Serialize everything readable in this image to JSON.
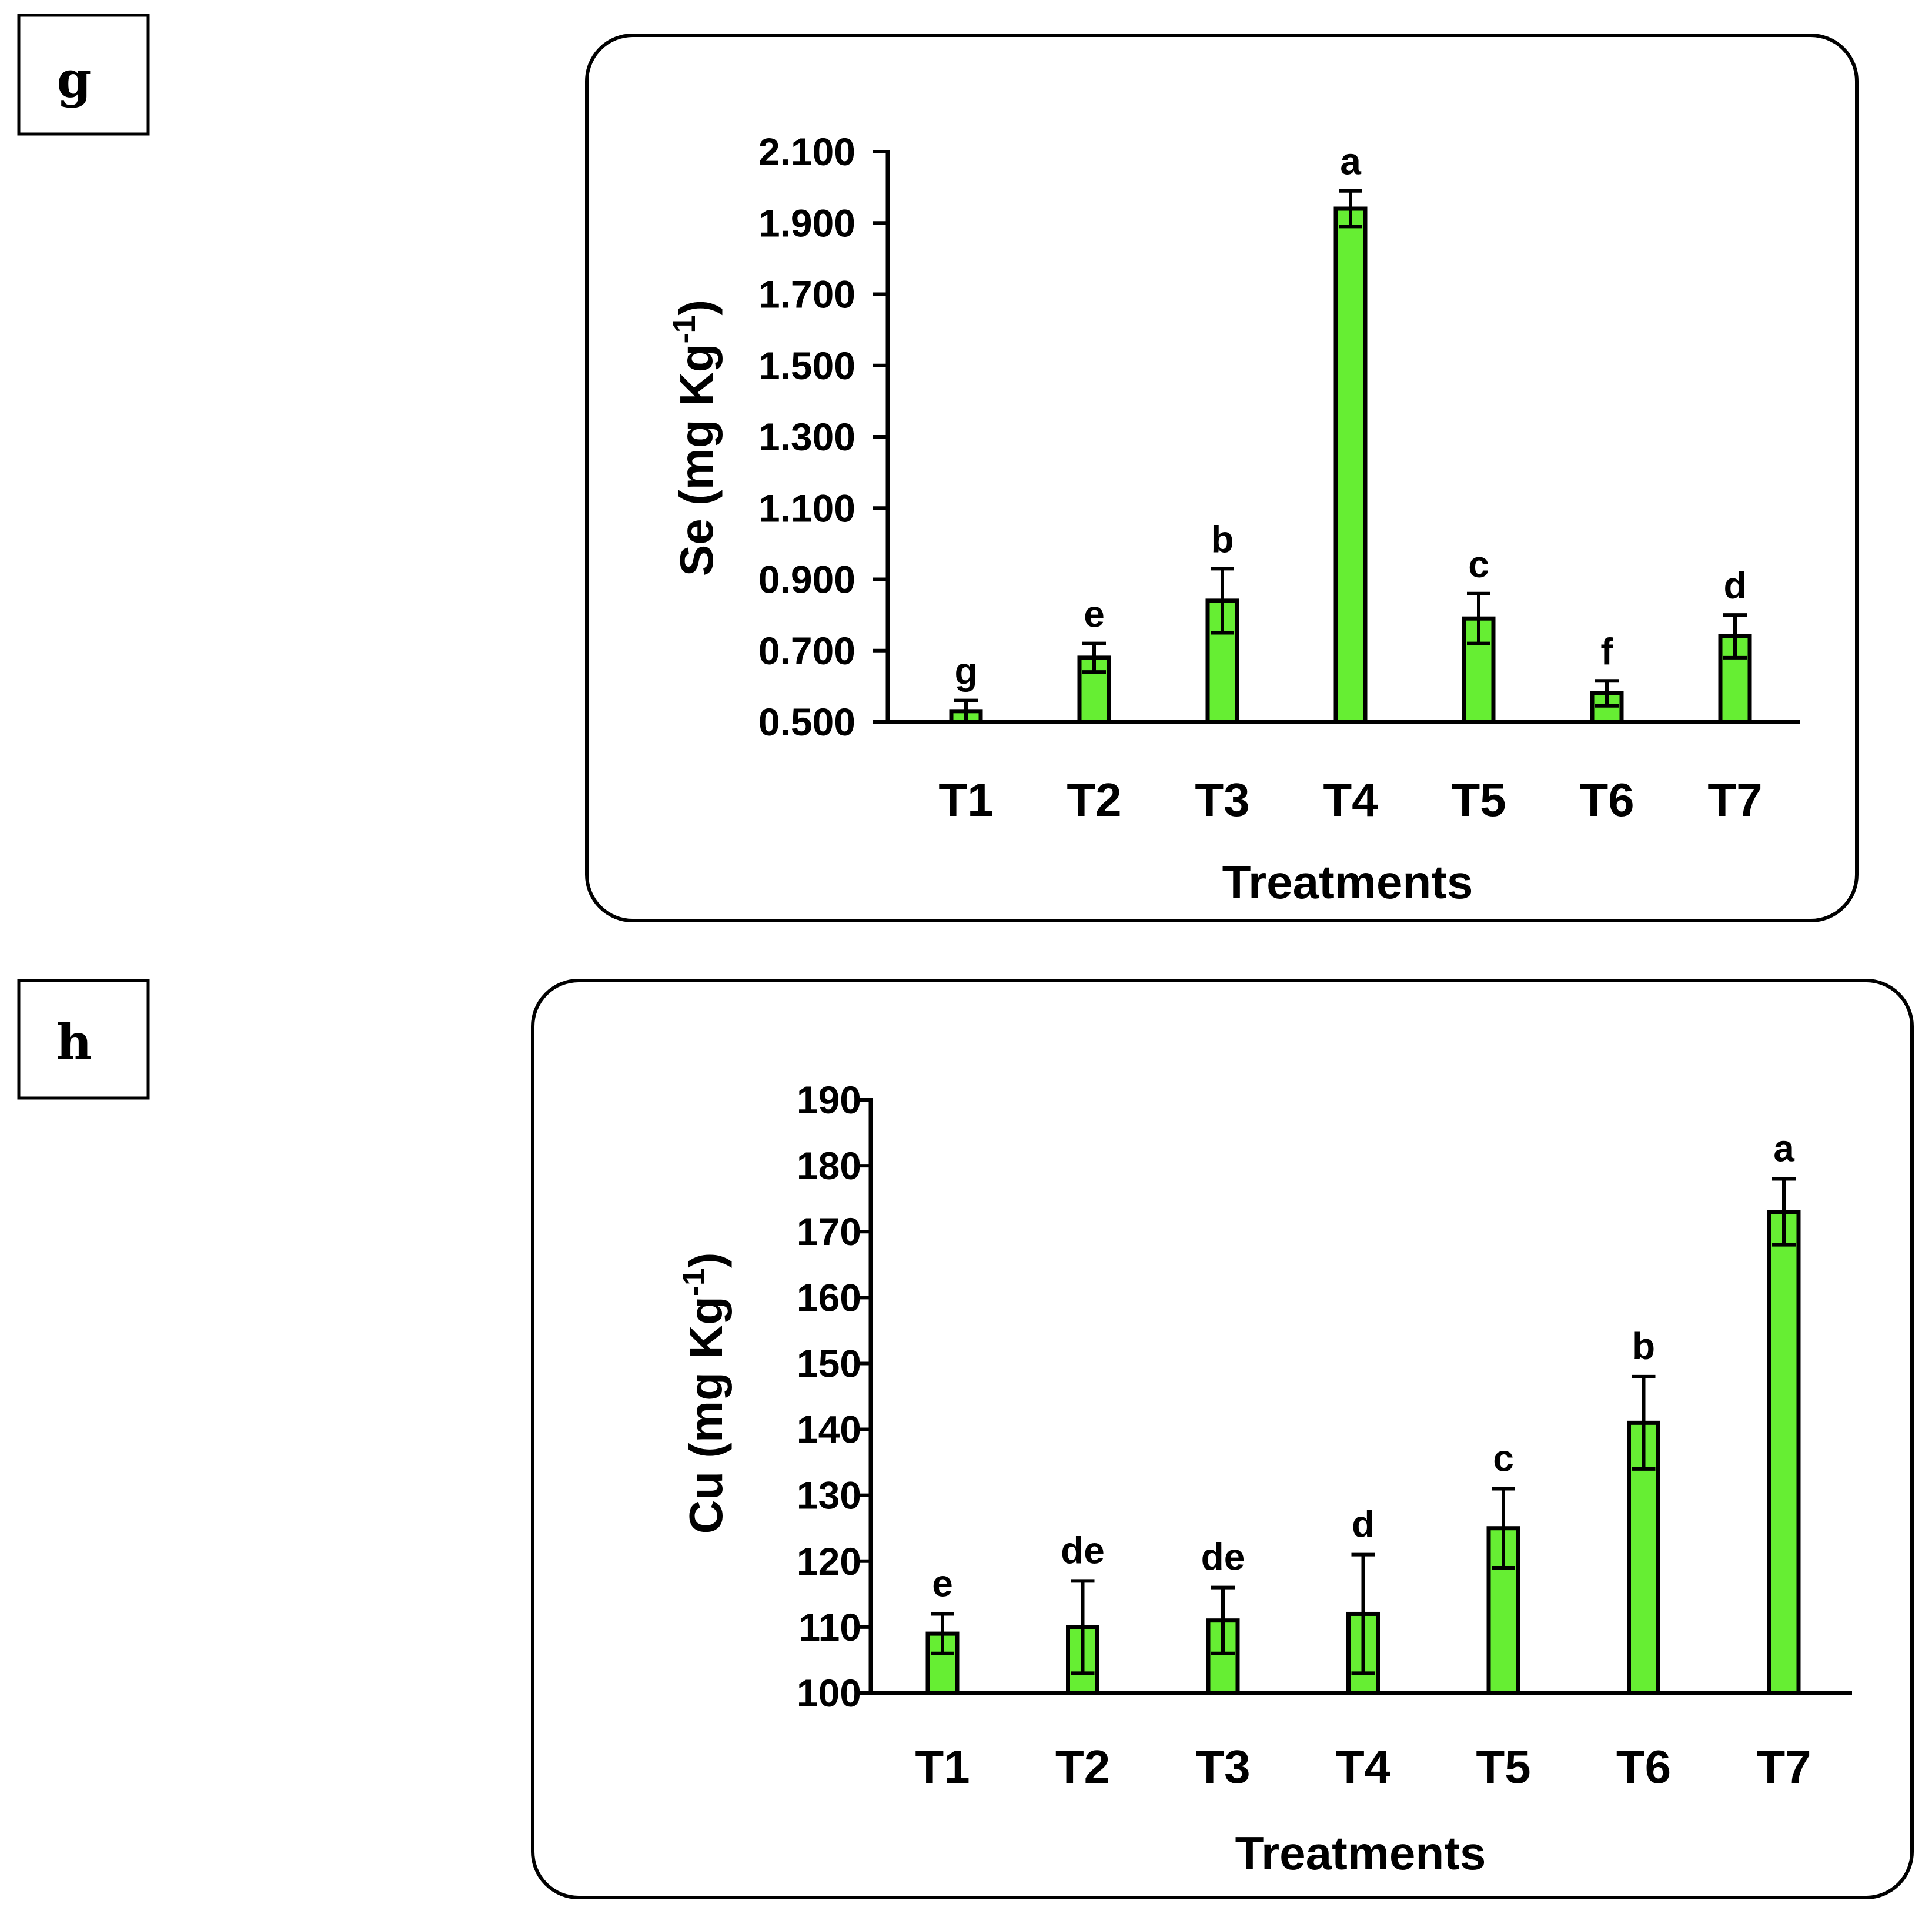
{
  "panels": [
    {
      "tag": "g"
    },
    {
      "tag": "h"
    }
  ],
  "chart_data": [
    {
      "type": "bar",
      "panel": "g",
      "title": "",
      "xlabel": "Treatments",
      "ylabel_main": "Se (mg Kg",
      "ylabel_sup": "-1",
      "ylabel_close": ")",
      "categories": [
        "T1",
        "T2",
        "T3",
        "T4",
        "T5",
        "T6",
        "T7"
      ],
      "values": [
        0.53,
        0.68,
        0.84,
        1.94,
        0.79,
        0.58,
        0.74
      ],
      "errors": [
        0.03,
        0.04,
        0.09,
        0.05,
        0.07,
        0.035,
        0.06
      ],
      "significance": [
        "g",
        "e",
        "b",
        "a",
        "c",
        "f",
        "d"
      ],
      "ylim": [
        0.5,
        2.1
      ],
      "yticks": [
        0.5,
        0.7,
        0.9,
        1.1,
        1.3,
        1.5,
        1.7,
        1.9,
        2.1
      ],
      "ytick_labels": [
        "0.500",
        "0.700",
        "0.900",
        "1.100",
        "1.300",
        "1.500",
        "1.700",
        "1.900",
        "2.100"
      ],
      "bar_color": "#66ee33",
      "grid": false,
      "legend": false
    },
    {
      "type": "bar",
      "panel": "h",
      "title": "",
      "xlabel": "Treatments",
      "ylabel_main": "Cu (mg Kg",
      "ylabel_sup": "-1",
      "ylabel_close": ")",
      "categories": [
        "T1",
        "T2",
        "T3",
        "T4",
        "T5",
        "T6",
        "T7"
      ],
      "values": [
        109,
        110,
        111,
        112,
        125,
        141,
        173
      ],
      "errors": [
        3,
        7,
        5,
        9,
        6,
        7,
        5
      ],
      "significance": [
        "e",
        "de",
        "de",
        "d",
        "c",
        "b",
        "a"
      ],
      "ylim": [
        100,
        190
      ],
      "yticks": [
        100,
        110,
        120,
        130,
        140,
        150,
        160,
        170,
        180,
        190
      ],
      "ytick_labels": [
        "100",
        "110",
        "120",
        "130",
        "140",
        "150",
        "160",
        "170",
        "180",
        "190"
      ],
      "bar_color": "#66ee33",
      "grid": false,
      "legend": false
    }
  ]
}
